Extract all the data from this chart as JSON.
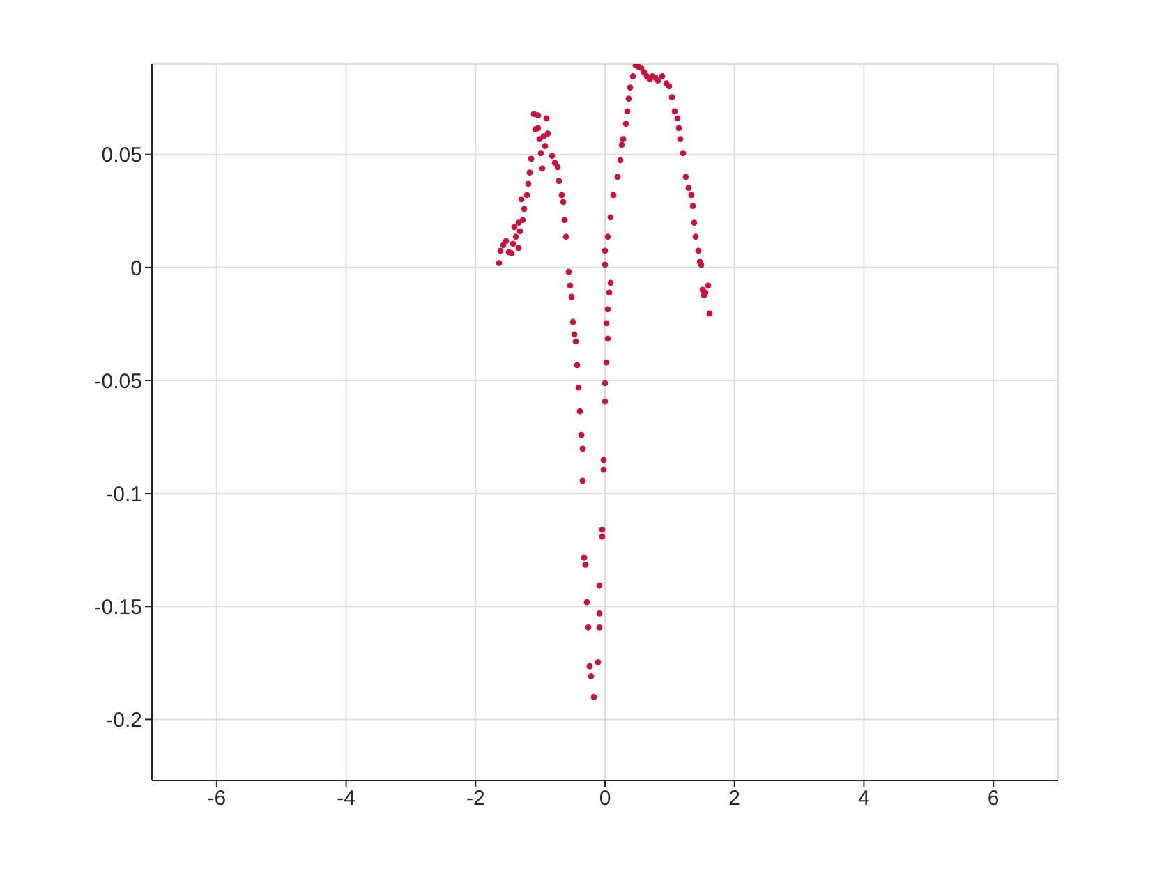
{
  "chart_data": {
    "type": "scatter",
    "marker": "circle",
    "grid": true,
    "xlim": [
      -7,
      7
    ],
    "xticks": [
      -6,
      -4,
      -2,
      0,
      2,
      4,
      6
    ],
    "ylim": [
      -0.227,
      0.09
    ],
    "yticks": [
      -0.2,
      -0.15,
      -0.1,
      -0.05,
      0,
      0.05
    ],
    "series": [
      {
        "color": "#c8143c",
        "x": [
          -1.637,
          -1.615,
          -1.572,
          -1.529,
          -1.486,
          -1.443,
          -1.421,
          -1.378,
          -1.335,
          -1.314,
          -1.4,
          -1.335,
          -1.292,
          -1.271,
          -1.249,
          -1.206,
          -1.185,
          -1.163,
          -1.142,
          -1.099,
          -1.034,
          -1.077,
          -1.034,
          -1.012,
          -0.991,
          -0.969,
          -0.948,
          -0.926,
          -0.905,
          -0.883,
          -0.818,
          -0.775,
          -0.732,
          -0.711,
          -0.668,
          -0.646,
          -0.625,
          -0.603,
          -0.56,
          -0.538,
          -0.517,
          -0.495,
          -0.474,
          -0.452,
          -0.431,
          -0.409,
          -0.388,
          -0.366,
          -0.345,
          -0.345,
          -0.323,
          -0.302,
          -0.28,
          -0.258,
          -0.237,
          -0.215,
          -0.172,
          0.086,
          0.065,
          0.043,
          0.022,
          0.043,
          0.022,
          0,
          0,
          -0.022,
          -0.022,
          -0.043,
          -0.043,
          -0.086,
          -0.086,
          -0.086,
          -0.108,
          0,
          0,
          0.043,
          0.086,
          0.129,
          0.194,
          0.237,
          0.258,
          0.28,
          0.323,
          0.345,
          0.366,
          0.388,
          0.431,
          0.474,
          0.517,
          0.56,
          0.603,
          0.646,
          0.689,
          0.732,
          0.775,
          0.818,
          0.883,
          0.948,
          0.991,
          1.034,
          1.077,
          1.12,
          1.141,
          1.163,
          1.206,
          1.249,
          1.292,
          1.335,
          1.357,
          1.378,
          1.4,
          1.443,
          1.465,
          1.486,
          1.508,
          1.529,
          1.551,
          1.594,
          1.615
        ],
        "values": [
          0.0019,
          0.0074,
          0.0099,
          0.0117,
          0.0068,
          0.0062,
          0.0105,
          0.0136,
          0.0086,
          0.016,
          0.0179,
          0.0198,
          0.0302,
          0.021,
          0.0259,
          0.0321,
          0.037,
          0.042,
          0.0481,
          0.0679,
          0.0673,
          0.0611,
          0.0617,
          0.0568,
          0.0506,
          0.0438,
          0.058,
          0.0537,
          0.066,
          0.0593,
          0.0494,
          0.0463,
          0.0444,
          0.0383,
          0.0321,
          0.029,
          0.021,
          0.0136,
          -0.0019,
          -0.008,
          -0.013,
          -0.0241,
          -0.0296,
          -0.0327,
          -0.0432,
          -0.0531,
          -0.0636,
          -0.0741,
          -0.0802,
          -0.0944,
          -0.1284,
          -0.1315,
          -0.1481,
          -0.1593,
          -0.1765,
          -0.1809,
          -0.1901,
          -0.0068,
          -0.0111,
          -0.0185,
          -0.0247,
          -0.0315,
          -0.042,
          -0.0512,
          -0.0593,
          -0.0852,
          -0.0895,
          -0.116,
          -0.1191,
          -0.1407,
          -0.1531,
          -0.1593,
          -0.1747,
          0.0012,
          0.0074,
          0.0136,
          0.0222,
          0.0321,
          0.0401,
          0.0475,
          0.0543,
          0.0568,
          0.0636,
          0.0691,
          0.0747,
          0.0796,
          0.0846,
          0.0895,
          0.0889,
          0.0883,
          0.0864,
          0.0846,
          0.0833,
          0.0846,
          0.084,
          0.0827,
          0.0846,
          0.0815,
          0.0802,
          0.0753,
          0.0691,
          0.066,
          0.0617,
          0.0568,
          0.0506,
          0.0401,
          0.0352,
          0.0321,
          0.0272,
          0.0198,
          0.0136,
          0.0074,
          0.0025,
          0.0012,
          -0.0099,
          -0.0123,
          -0.0111,
          -0.008,
          -0.0204
        ]
      }
    ]
  }
}
